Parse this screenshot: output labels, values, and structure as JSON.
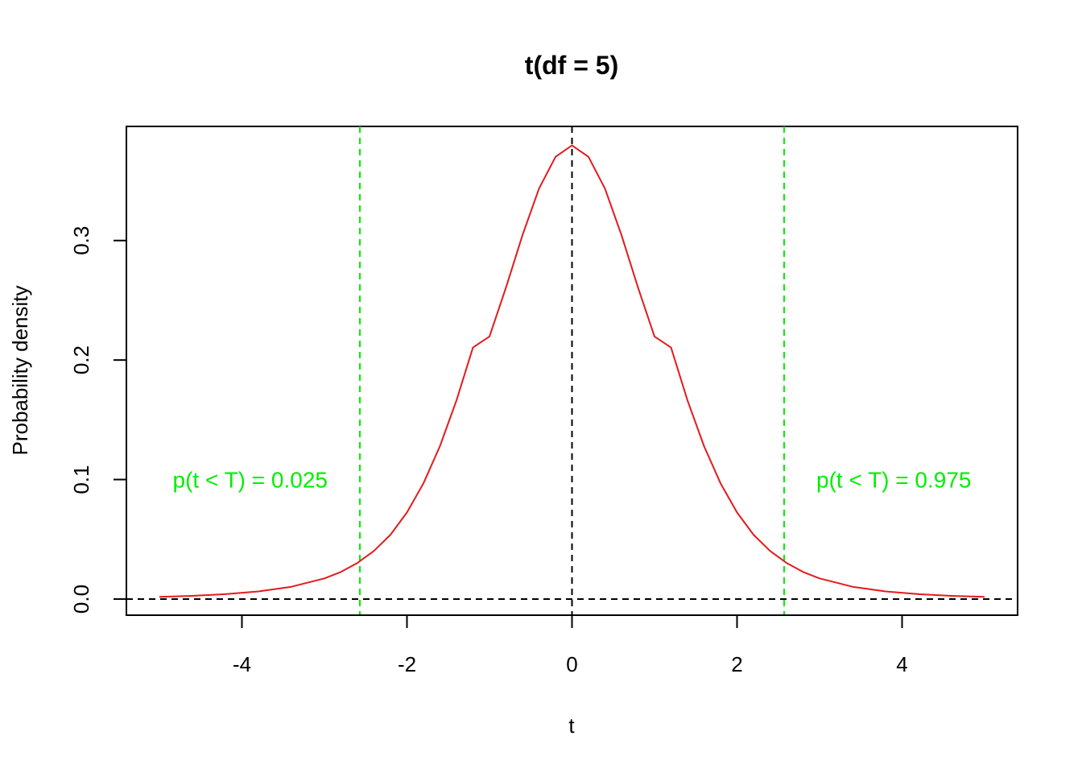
{
  "chart_data": {
    "type": "line",
    "title": "t(df = 5)",
    "xlabel": "t",
    "ylabel": "Probability density",
    "xlim": [
      -5.4,
      5.4
    ],
    "ylim": [
      -0.0135,
      0.3955
    ],
    "x_ticks": [
      -4,
      -2,
      0,
      2,
      4
    ],
    "x_tick_labels": [
      "-4",
      "-2",
      "0",
      "2",
      "4"
    ],
    "y_ticks": [
      0.0,
      0.1,
      0.2,
      0.3
    ],
    "y_tick_labels": [
      "0.0",
      "0.1",
      "0.2",
      "0.3"
    ],
    "grid": false,
    "series": [
      {
        "color": "#e41a1c",
        "x": [
          -5.0,
          -4.6,
          -4.2,
          -3.8,
          -3.4,
          -3.0,
          -2.8,
          -2.6,
          -2.4,
          -2.2,
          -2.0,
          -1.8,
          -1.6,
          -1.4,
          -1.2,
          -1.0,
          -0.8,
          -0.6,
          -0.4,
          -0.2,
          0.0,
          0.2,
          0.4,
          0.6,
          0.8,
          1.0,
          1.2,
          1.4,
          1.6,
          1.8,
          2.0,
          2.2,
          2.4,
          2.6,
          2.8,
          3.0,
          3.4,
          3.8,
          4.2,
          4.6,
          5.0
        ],
        "y": [
          0.0018,
          0.0027,
          0.0041,
          0.0064,
          0.0103,
          0.0173,
          0.0227,
          0.0302,
          0.0403,
          0.0538,
          0.0725,
          0.0969,
          0.128,
          0.1662,
          0.2105,
          0.2197,
          0.2607,
          0.3045,
          0.3434,
          0.37,
          0.3796,
          0.37,
          0.3434,
          0.3045,
          0.2607,
          0.2197,
          0.2105,
          0.1662,
          0.128,
          0.0969,
          0.0725,
          0.0538,
          0.0403,
          0.0302,
          0.0227,
          0.0173,
          0.0103,
          0.0064,
          0.0041,
          0.0027,
          0.0018
        ]
      }
    ],
    "reference_lines": [
      {
        "orientation": "vertical",
        "value": 0,
        "color": "#000000",
        "style": "dashed"
      },
      {
        "orientation": "horizontal",
        "value": 0,
        "color": "#000000",
        "style": "dashed"
      },
      {
        "orientation": "vertical",
        "value": -2.5706,
        "color": "#00ee00",
        "style": "dashed"
      },
      {
        "orientation": "vertical",
        "value": 2.5706,
        "color": "#00ee00",
        "style": "dashed"
      }
    ],
    "annotations": [
      {
        "text": "p(t < T) = 0.025",
        "x": -3.9,
        "y": 0.1,
        "color": "#00ee00"
      },
      {
        "text": "p(t < T) = 0.975",
        "x": 3.9,
        "y": 0.1,
        "color": "#00ee00"
      }
    ]
  }
}
